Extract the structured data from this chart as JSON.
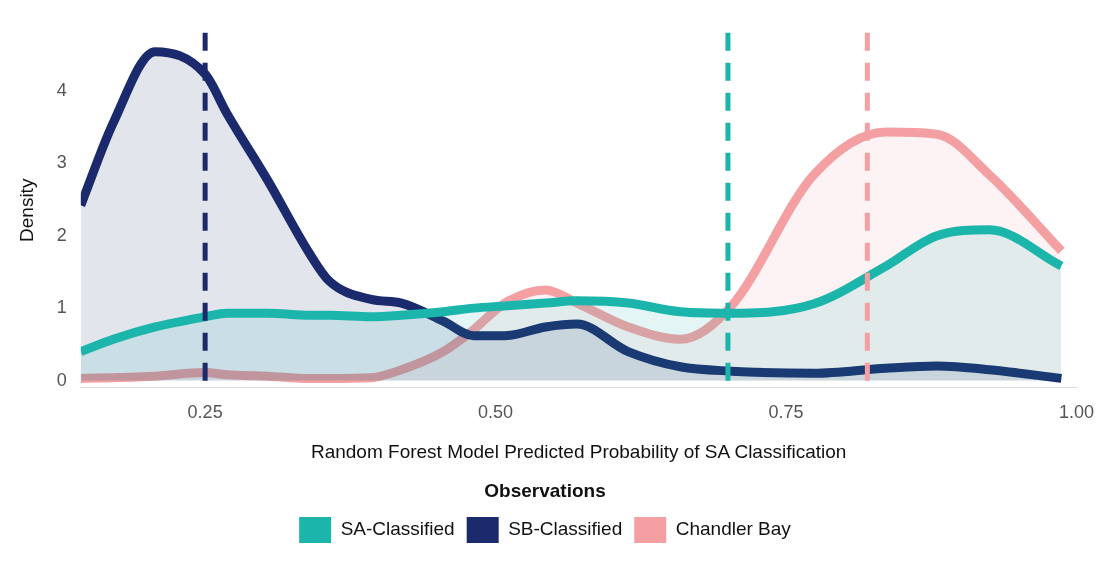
{
  "chart_data": {
    "type": "area",
    "xlabel": "Random Forest Model Predicted Probability of SA Classification",
    "ylabel": "Density",
    "legend_title": "Observations",
    "legend": "bottom",
    "grid": false,
    "line_style": "solid",
    "marker": "none",
    "x": [
      0.143,
      0.171,
      0.207,
      0.25,
      0.269,
      0.304,
      0.34,
      0.357,
      0.393,
      0.419,
      0.455,
      0.481,
      0.508,
      0.543,
      0.57,
      0.614,
      0.659,
      0.703,
      0.774,
      0.836,
      0.88,
      0.925,
      0.987
    ],
    "xlim": [
      0.143,
      1.0
    ],
    "xticks": [
      {
        "value": 0.25,
        "label": "0.25"
      },
      {
        "value": 0.5,
        "label": "0.50"
      },
      {
        "value": 0.75,
        "label": "0.75"
      },
      {
        "value": 1.0,
        "label": "1.00"
      }
    ],
    "ylim": [
      -0.1,
      4.8
    ],
    "yticks": [
      0,
      1,
      2,
      3,
      4
    ],
    "series": [
      {
        "name": "SA-Classified",
        "color": "#1cb5ac",
        "values": [
          0.4,
          0.57,
          0.74,
          0.88,
          0.93,
          0.93,
          0.9,
          0.9,
          0.88,
          0.9,
          0.95,
          1.0,
          1.03,
          1.07,
          1.1,
          1.07,
          0.95,
          0.93,
          1.06,
          1.58,
          2.0,
          2.08,
          1.58
        ]
      },
      {
        "name": "SB-Classified",
        "color": "#1a2a6c",
        "values": [
          2.42,
          3.56,
          4.54,
          4.23,
          3.68,
          2.76,
          1.75,
          1.37,
          1.12,
          1.07,
          0.82,
          0.62,
          0.62,
          0.74,
          0.78,
          0.4,
          0.19,
          0.13,
          0.1,
          0.17,
          0.2,
          0.15,
          0.03
        ]
      },
      {
        "name": "Chandler Bay",
        "color": "#f4a0a3",
        "values": [
          0.03,
          0.04,
          0.06,
          0.11,
          0.08,
          0.06,
          0.03,
          0.03,
          0.04,
          0.15,
          0.4,
          0.7,
          1.07,
          1.25,
          1.07,
          0.74,
          0.57,
          1.03,
          2.84,
          3.43,
          3.4,
          2.84,
          1.79
        ]
      }
    ],
    "ref_lines": [
      {
        "axis": "x",
        "value": 0.25,
        "color": "#1a2a6c",
        "line_style": "dashed"
      },
      {
        "axis": "x",
        "value": 0.7,
        "color": "#1cb5ac",
        "line_style": "dashed"
      },
      {
        "axis": "x",
        "value": 0.82,
        "color": "#f4a0a3",
        "line_style": "dashed"
      }
    ]
  }
}
